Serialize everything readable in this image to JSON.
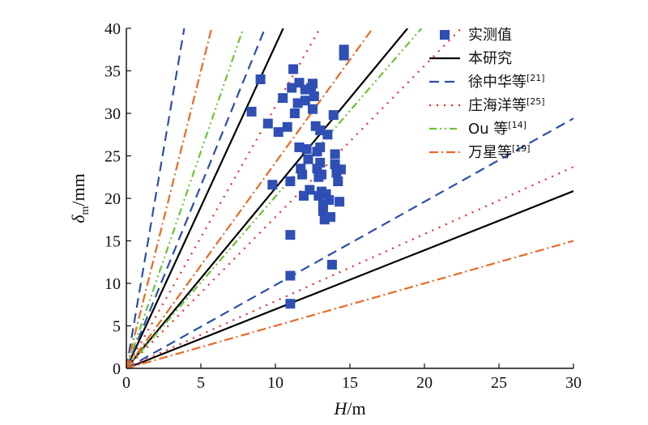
{
  "chart_data": {
    "type": "scatter",
    "xlabel": {
      "main": "H",
      "unit": "/m"
    },
    "ylabel": {
      "main": "δ",
      "sub": "m",
      "unit": "/mm"
    },
    "xlim": [
      0,
      30
    ],
    "ylim": [
      0,
      40
    ],
    "x_ticks": [
      "0",
      "5",
      "10",
      "15",
      "20",
      "25",
      "30"
    ],
    "y_ticks": [
      "0",
      "5",
      "10",
      "15",
      "20",
      "25",
      "30",
      "35",
      "40"
    ],
    "grid": false,
    "legend_position": "top-right",
    "series": [
      {
        "name": "实测值",
        "kind": "points",
        "color": "#2f4fb5",
        "points": [
          [
            8.4,
            30.2
          ],
          [
            9.0,
            34.0
          ],
          [
            9.5,
            28.8
          ],
          [
            9.8,
            21.6
          ],
          [
            10.2,
            27.8
          ],
          [
            10.5,
            31.8
          ],
          [
            10.8,
            28.4
          ],
          [
            11.0,
            22.0
          ],
          [
            11.0,
            10.9
          ],
          [
            11.0,
            7.6
          ],
          [
            11.0,
            15.7
          ],
          [
            11.1,
            33.0
          ],
          [
            11.2,
            35.2
          ],
          [
            11.3,
            30.0
          ],
          [
            11.5,
            31.2
          ],
          [
            11.6,
            33.6
          ],
          [
            11.6,
            26.0
          ],
          [
            11.7,
            23.5
          ],
          [
            11.8,
            22.8
          ],
          [
            11.9,
            20.3
          ],
          [
            12.0,
            32.8
          ],
          [
            12.0,
            31.5
          ],
          [
            12.1,
            25.8
          ],
          [
            12.2,
            24.6
          ],
          [
            12.3,
            21.0
          ],
          [
            12.4,
            33.0
          ],
          [
            12.5,
            30.5
          ],
          [
            12.5,
            33.5
          ],
          [
            12.6,
            32.0
          ],
          [
            12.7,
            28.5
          ],
          [
            12.8,
            25.5
          ],
          [
            12.8,
            23.5
          ],
          [
            12.9,
            22.5
          ],
          [
            12.9,
            20.3
          ],
          [
            13.0,
            28.0
          ],
          [
            13.0,
            26.0
          ],
          [
            13.0,
            24.2
          ],
          [
            13.1,
            22.8
          ],
          [
            13.1,
            20.8
          ],
          [
            13.2,
            19.3
          ],
          [
            13.2,
            18.5
          ],
          [
            13.3,
            17.5
          ],
          [
            13.4,
            20.5
          ],
          [
            13.5,
            27.5
          ],
          [
            13.6,
            19.8
          ],
          [
            13.7,
            17.8
          ],
          [
            13.8,
            12.2
          ],
          [
            13.9,
            29.8
          ],
          [
            14.0,
            25.2
          ],
          [
            14.0,
            24.0
          ],
          [
            14.1,
            23.0
          ],
          [
            14.2,
            22.0
          ],
          [
            14.3,
            19.6
          ],
          [
            14.4,
            23.4
          ],
          [
            14.6,
            37.5
          ],
          [
            14.6,
            36.8
          ]
        ]
      },
      {
        "name": "本研究",
        "kind": "lines",
        "color": "#000000",
        "dash": "",
        "slopes": [
          3.8,
          2.12,
          0.695
        ]
      },
      {
        "name": "徐中华等",
        "ref": "[21]",
        "kind": "lines",
        "color": "#2a4fa8",
        "dash": "12,7",
        "slopes": [
          10.3,
          4.3,
          0.98
        ]
      },
      {
        "name": "庄海洋等",
        "ref": "[25]",
        "kind": "lines",
        "color": "#e8272b",
        "dash": "2,7",
        "slopes": [
          3.08,
          1.78,
          0.79
        ]
      },
      {
        "name": "Ou 等",
        "ref": "[14]",
        "kind": "lines",
        "color": "#6ac335",
        "dash": "9,4,2,4,2,4",
        "slopes": [
          5.1,
          2.02
        ]
      },
      {
        "name": "万星等",
        "ref": "[19]",
        "kind": "lines",
        "color": "#e86a25",
        "dash": "11,4,2,4",
        "slopes": [
          7.0,
          2.42,
          0.5
        ]
      }
    ]
  }
}
